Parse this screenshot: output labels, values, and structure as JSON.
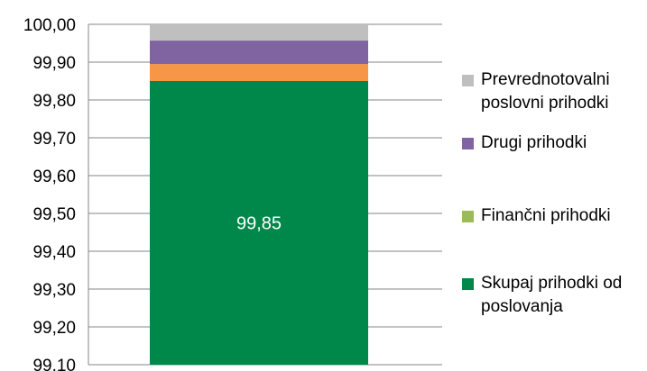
{
  "chart_data": {
    "type": "bar",
    "stacked": true,
    "categories": [
      ""
    ],
    "ylim": [
      99.1,
      100.0
    ],
    "yticks": [
      "100,00",
      "99,90",
      "99,80",
      "99,70",
      "99,60",
      "99,50",
      "99,40",
      "99,30",
      "99,20",
      "99,10"
    ],
    "ytick_values": [
      100.0,
      99.9,
      99.8,
      99.7,
      99.6,
      99.5,
      99.4,
      99.3,
      99.2,
      99.1
    ],
    "grid": true,
    "legend_position": "right",
    "series": [
      {
        "name": "Skupaj prihodki od poslovanja",
        "value": 99.85,
        "color": "#00874a",
        "data_label": "99,85"
      },
      {
        "name": "Finančni prihodki",
        "value": 0.045,
        "color": "#f79646",
        "legend_color": "#9bbb59"
      },
      {
        "name": "Drugi prihodki",
        "value": 0.062,
        "color": "#8064a2"
      },
      {
        "name": "Prevrednotovalni poslovni prihodki",
        "value": 0.043,
        "color": "#bfbfbf"
      }
    ]
  },
  "legend": [
    {
      "text": "Prevrednotovalni\nposlovni prihodki",
      "color": "#bfbfbf"
    },
    {
      "text": "Drugi prihodki",
      "color": "#8064a2"
    },
    {
      "text": "Finančni prihodki",
      "color": "#9bbb59"
    },
    {
      "text": "Skupaj prihodki od\nposlovanja",
      "color": "#00874a"
    }
  ]
}
